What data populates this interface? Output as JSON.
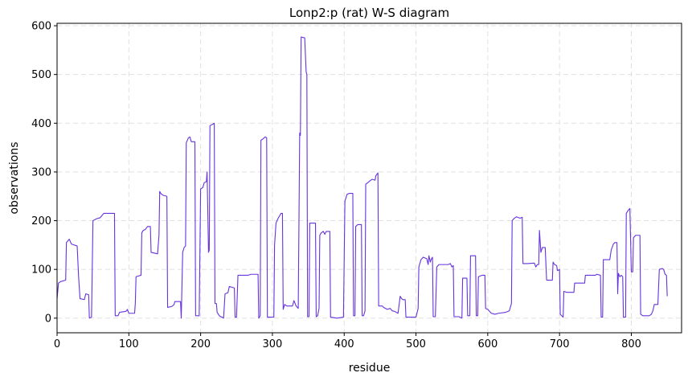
{
  "chart_data": {
    "type": "line",
    "title": "Lonp2:p (rat) W-S diagram",
    "xlabel": "residue",
    "ylabel": "observations",
    "xlim": [
      0,
      870
    ],
    "ylim": [
      -30,
      605
    ],
    "xticks": [
      0,
      100,
      200,
      300,
      400,
      500,
      600,
      700,
      800
    ],
    "yticks": [
      0,
      100,
      200,
      300,
      400,
      500,
      600
    ],
    "grid": true,
    "line_color": "#6633dd",
    "series": [
      {
        "points": [
          [
            0,
            40
          ],
          [
            2,
            72
          ],
          [
            5,
            75
          ],
          [
            12,
            78
          ],
          [
            13,
            155
          ],
          [
            17,
            162
          ],
          [
            20,
            152
          ],
          [
            28,
            148
          ],
          [
            30,
            85
          ],
          [
            32,
            40
          ],
          [
            38,
            38
          ],
          [
            40,
            50
          ],
          [
            44,
            48
          ],
          [
            45,
            0
          ],
          [
            48,
            2
          ],
          [
            50,
            200
          ],
          [
            55,
            204
          ],
          [
            60,
            206
          ],
          [
            65,
            215
          ],
          [
            80,
            215
          ],
          [
            81,
            5
          ],
          [
            85,
            5
          ],
          [
            87,
            12
          ],
          [
            96,
            14
          ],
          [
            98,
            18
          ],
          [
            100,
            10
          ],
          [
            108,
            10
          ],
          [
            109,
            30
          ],
          [
            110,
            85
          ],
          [
            117,
            88
          ],
          [
            118,
            175
          ],
          [
            120,
            180
          ],
          [
            123,
            182
          ],
          [
            126,
            188
          ],
          [
            130,
            188
          ],
          [
            131,
            135
          ],
          [
            140,
            132
          ],
          [
            142,
            170
          ],
          [
            143,
            260
          ],
          [
            145,
            255
          ],
          [
            148,
            252
          ],
          [
            153,
            250
          ],
          [
            154,
            22
          ],
          [
            160,
            24
          ],
          [
            163,
            28
          ],
          [
            164,
            34
          ],
          [
            172,
            34
          ],
          [
            173,
            0
          ],
          [
            175,
            135
          ],
          [
            177,
            145
          ],
          [
            179,
            148
          ],
          [
            180,
            360
          ],
          [
            183,
            370
          ],
          [
            185,
            372
          ],
          [
            187,
            362
          ],
          [
            192,
            362
          ],
          [
            193,
            5
          ],
          [
            198,
            5
          ],
          [
            200,
            265
          ],
          [
            203,
            268
          ],
          [
            205,
            278
          ],
          [
            208,
            280
          ],
          [
            209,
            300
          ],
          [
            211,
            135
          ],
          [
            212,
            140
          ],
          [
            213,
            395
          ],
          [
            217,
            398
          ],
          [
            219,
            400
          ],
          [
            220,
            30
          ],
          [
            222,
            30
          ],
          [
            223,
            12
          ],
          [
            226,
            5
          ],
          [
            228,
            3
          ],
          [
            230,
            2
          ],
          [
            232,
            0
          ],
          [
            234,
            50
          ],
          [
            238,
            52
          ],
          [
            240,
            65
          ],
          [
            247,
            62
          ],
          [
            248,
            2
          ],
          [
            250,
            2
          ],
          [
            252,
            88
          ],
          [
            266,
            88
          ],
          [
            270,
            90
          ],
          [
            280,
            90
          ],
          [
            281,
            0
          ],
          [
            283,
            5
          ],
          [
            284,
            365
          ],
          [
            287,
            368
          ],
          [
            290,
            372
          ],
          [
            292,
            370
          ],
          [
            293,
            2
          ],
          [
            302,
            2
          ],
          [
            303,
            150
          ],
          [
            305,
            195
          ],
          [
            308,
            205
          ],
          [
            310,
            210
          ],
          [
            312,
            215
          ],
          [
            314,
            215
          ],
          [
            315,
            18
          ],
          [
            317,
            28
          ],
          [
            320,
            25
          ],
          [
            328,
            25
          ],
          [
            330,
            36
          ],
          [
            333,
            25
          ],
          [
            336,
            20
          ],
          [
            338,
            380
          ],
          [
            339,
            375
          ],
          [
            340,
            577
          ],
          [
            345,
            575
          ],
          [
            347,
            505
          ],
          [
            348,
            500
          ],
          [
            349,
            3
          ],
          [
            351,
            3
          ],
          [
            352,
            195
          ],
          [
            360,
            195
          ],
          [
            361,
            3
          ],
          [
            363,
            5
          ],
          [
            365,
            20
          ],
          [
            366,
            170
          ],
          [
            368,
            175
          ],
          [
            371,
            178
          ],
          [
            373,
            172
          ],
          [
            375,
            178
          ],
          [
            380,
            178
          ],
          [
            381,
            2
          ],
          [
            390,
            0
          ],
          [
            399,
            2
          ],
          [
            401,
            240
          ],
          [
            404,
            254
          ],
          [
            407,
            256
          ],
          [
            412,
            256
          ],
          [
            413,
            5
          ],
          [
            415,
            5
          ],
          [
            416,
            188
          ],
          [
            419,
            192
          ],
          [
            424,
            192
          ],
          [
            425,
            5
          ],
          [
            427,
            5
          ],
          [
            429,
            15
          ],
          [
            430,
            275
          ],
          [
            433,
            278
          ],
          [
            436,
            282
          ],
          [
            439,
            285
          ],
          [
            443,
            283
          ],
          [
            444,
            292
          ],
          [
            447,
            298
          ],
          [
            448,
            25
          ],
          [
            453,
            25
          ],
          [
            455,
            22
          ],
          [
            460,
            18
          ],
          [
            464,
            20
          ],
          [
            467,
            15
          ],
          [
            470,
            14
          ],
          [
            475,
            10
          ],
          [
            478,
            45
          ],
          [
            480,
            40
          ],
          [
            482,
            38
          ],
          [
            485,
            38
          ],
          [
            486,
            2
          ],
          [
            500,
            2
          ],
          [
            503,
            20
          ],
          [
            504,
            105
          ],
          [
            507,
            120
          ],
          [
            510,
            125
          ],
          [
            515,
            122
          ],
          [
            517,
            110
          ],
          [
            518,
            128
          ],
          [
            520,
            115
          ],
          [
            521,
            120
          ],
          [
            523,
            125
          ],
          [
            524,
            3
          ],
          [
            527,
            3
          ],
          [
            529,
            105
          ],
          [
            532,
            110
          ],
          [
            545,
            110
          ],
          [
            548,
            112
          ],
          [
            550,
            105
          ],
          [
            552,
            108
          ],
          [
            553,
            3
          ],
          [
            560,
            3
          ],
          [
            564,
            0
          ],
          [
            565,
            82
          ],
          [
            571,
            82
          ],
          [
            572,
            5
          ],
          [
            575,
            5
          ],
          [
            576,
            128
          ],
          [
            583,
            128
          ],
          [
            584,
            5
          ],
          [
            586,
            5
          ],
          [
            587,
            85
          ],
          [
            592,
            88
          ],
          [
            596,
            88
          ],
          [
            597,
            20
          ],
          [
            600,
            18
          ],
          [
            605,
            10
          ],
          [
            610,
            8
          ],
          [
            615,
            10
          ],
          [
            625,
            12
          ],
          [
            630,
            15
          ],
          [
            633,
            30
          ],
          [
            634,
            200
          ],
          [
            637,
            205
          ],
          [
            640,
            208
          ],
          [
            645,
            205
          ],
          [
            648,
            207
          ],
          [
            649,
            112
          ],
          [
            655,
            112
          ],
          [
            665,
            113
          ],
          [
            667,
            105
          ],
          [
            669,
            110
          ],
          [
            671,
            110
          ],
          [
            672,
            180
          ],
          [
            674,
            135
          ],
          [
            676,
            145
          ],
          [
            680,
            145
          ],
          [
            682,
            78
          ],
          [
            684,
            78
          ],
          [
            690,
            78
          ],
          [
            691,
            115
          ],
          [
            693,
            110
          ],
          [
            696,
            108
          ],
          [
            697,
            98
          ],
          [
            698,
            98
          ],
          [
            700,
            100
          ],
          [
            701,
            8
          ],
          [
            705,
            2
          ],
          [
            706,
            55
          ],
          [
            710,
            53
          ],
          [
            720,
            53
          ],
          [
            721,
            72
          ],
          [
            735,
            72
          ],
          [
            736,
            88
          ],
          [
            750,
            88
          ],
          [
            752,
            90
          ],
          [
            757,
            88
          ],
          [
            758,
            2
          ],
          [
            760,
            2
          ],
          [
            761,
            120
          ],
          [
            770,
            120
          ],
          [
            772,
            140
          ],
          [
            775,
            152
          ],
          [
            777,
            155
          ],
          [
            780,
            155
          ],
          [
            781,
            50
          ],
          [
            782,
            92
          ],
          [
            784,
            85
          ],
          [
            786,
            88
          ],
          [
            788,
            85
          ],
          [
            789,
            2
          ],
          [
            792,
            2
          ],
          [
            793,
            215
          ],
          [
            796,
            222
          ],
          [
            798,
            225
          ],
          [
            800,
            95
          ],
          [
            802,
            95
          ],
          [
            803,
            165
          ],
          [
            806,
            170
          ],
          [
            812,
            170
          ],
          [
            813,
            8
          ],
          [
            816,
            5
          ],
          [
            820,
            5
          ],
          [
            825,
            5
          ],
          [
            828,
            8
          ],
          [
            830,
            15
          ],
          [
            832,
            28
          ],
          [
            837,
            28
          ],
          [
            839,
            100
          ],
          [
            843,
            102
          ],
          [
            845,
            100
          ],
          [
            847,
            90
          ],
          [
            849,
            88
          ],
          [
            850,
            45
          ]
        ]
      }
    ]
  }
}
